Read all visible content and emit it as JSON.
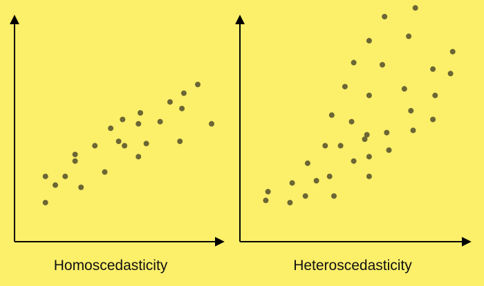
{
  "colors": {
    "background": "#fcef6a",
    "point": "#6b6634",
    "axis": "#000000"
  },
  "chart_data": [
    {
      "type": "scatter",
      "title": "Homoscedasticity",
      "xlabel": "",
      "ylabel": "",
      "grid": false,
      "xlim": [
        0,
        100
      ],
      "ylim": [
        0,
        100
      ],
      "points": [
        {
          "x": 9,
          "y": 27
        },
        {
          "x": 9,
          "y": 15
        },
        {
          "x": 14,
          "y": 23
        },
        {
          "x": 19,
          "y": 27
        },
        {
          "x": 24,
          "y": 34
        },
        {
          "x": 24,
          "y": 37
        },
        {
          "x": 27,
          "y": 22
        },
        {
          "x": 34,
          "y": 41
        },
        {
          "x": 39,
          "y": 29
        },
        {
          "x": 42,
          "y": 49
        },
        {
          "x": 46,
          "y": 43
        },
        {
          "x": 48,
          "y": 53
        },
        {
          "x": 49,
          "y": 41
        },
        {
          "x": 56,
          "y": 51
        },
        {
          "x": 57,
          "y": 56
        },
        {
          "x": 56,
          "y": 36
        },
        {
          "x": 60,
          "y": 42
        },
        {
          "x": 67,
          "y": 52
        },
        {
          "x": 72,
          "y": 61
        },
        {
          "x": 77,
          "y": 43
        },
        {
          "x": 78,
          "y": 58
        },
        {
          "x": 79,
          "y": 65
        },
        {
          "x": 86,
          "y": 69
        },
        {
          "x": 93,
          "y": 51
        }
      ]
    },
    {
      "type": "scatter",
      "title": "Heteroscedasticity",
      "xlabel": "",
      "ylabel": "",
      "grid": false,
      "xlim": [
        0,
        100
      ],
      "ylim": [
        0,
        100
      ],
      "points": [
        {
          "x": 8,
          "y": 16
        },
        {
          "x": 9,
          "y": 20
        },
        {
          "x": 19,
          "y": 15
        },
        {
          "x": 20,
          "y": 24
        },
        {
          "x": 26,
          "y": 18
        },
        {
          "x": 27,
          "y": 33
        },
        {
          "x": 31,
          "y": 25
        },
        {
          "x": 35,
          "y": 41
        },
        {
          "x": 37,
          "y": 27
        },
        {
          "x": 38,
          "y": 55
        },
        {
          "x": 39,
          "y": 18
        },
        {
          "x": 42,
          "y": 41
        },
        {
          "x": 44,
          "y": 68
        },
        {
          "x": 47,
          "y": 52
        },
        {
          "x": 48,
          "y": 34
        },
        {
          "x": 48,
          "y": 79
        },
        {
          "x": 53,
          "y": 44
        },
        {
          "x": 54,
          "y": 46
        },
        {
          "x": 55,
          "y": 27
        },
        {
          "x": 55,
          "y": 36
        },
        {
          "x": 55,
          "y": 64
        },
        {
          "x": 55,
          "y": 89
        },
        {
          "x": 61,
          "y": 78
        },
        {
          "x": 62,
          "y": 100
        },
        {
          "x": 63,
          "y": 47
        },
        {
          "x": 64,
          "y": 39
        },
        {
          "x": 71,
          "y": 67
        },
        {
          "x": 73,
          "y": 91
        },
        {
          "x": 74,
          "y": 57
        },
        {
          "x": 75,
          "y": 48
        },
        {
          "x": 76,
          "y": 104
        },
        {
          "x": 84,
          "y": 53
        },
        {
          "x": 84,
          "y": 76
        },
        {
          "x": 85,
          "y": 64
        },
        {
          "x": 92,
          "y": 74
        },
        {
          "x": 93,
          "y": 84
        }
      ]
    }
  ]
}
